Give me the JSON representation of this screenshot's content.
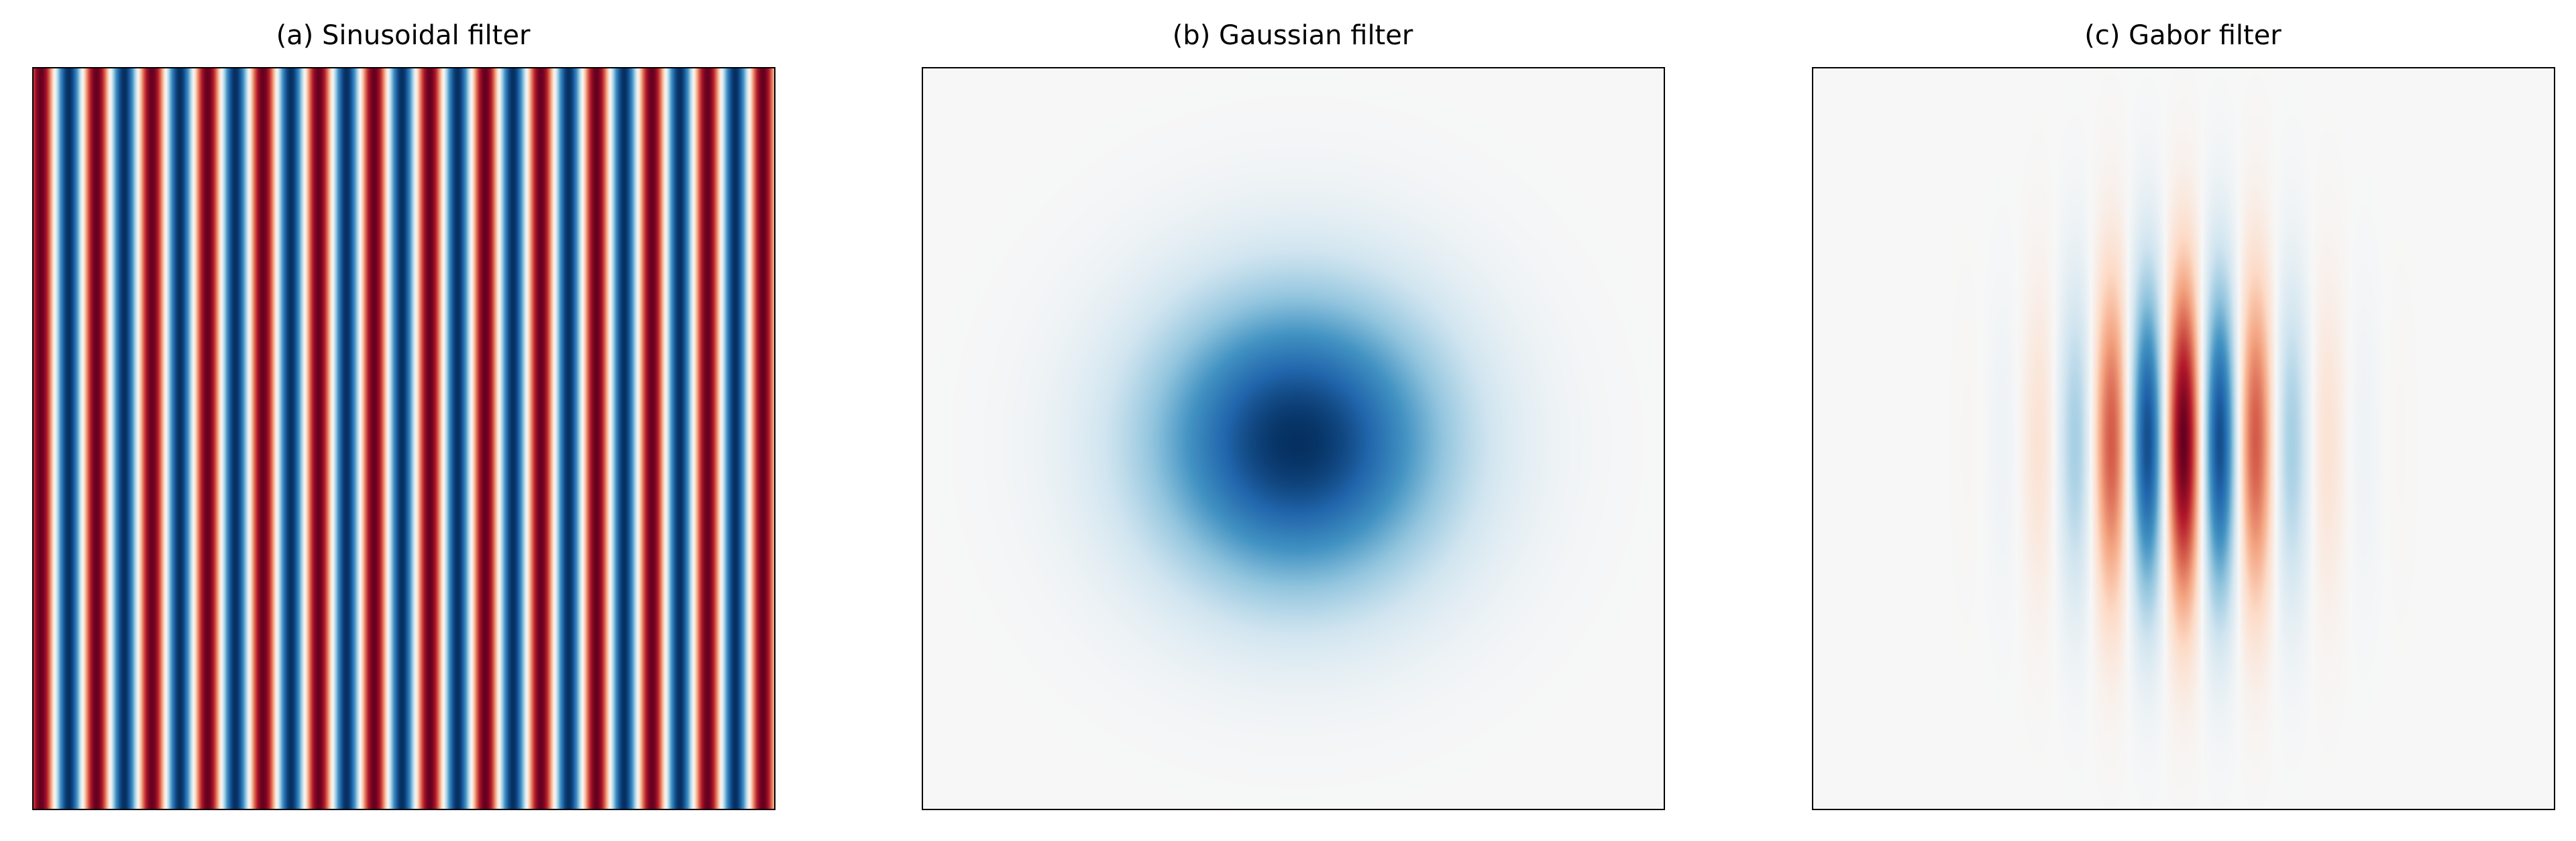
{
  "chart_data": [
    {
      "type": "heatmap",
      "title": "(a) Sinusoidal filter",
      "colormap": "RdBu_r",
      "value_range": [
        -1,
        1
      ],
      "extent": [
        -1,
        1
      ],
      "function": "sinusoid",
      "orientation": "vertical stripes",
      "wavelength": 0.15,
      "peak_x": -0.98,
      "axes_ticks": "none"
    },
    {
      "type": "heatmap",
      "title": "(b) Gaussian filter",
      "colormap": "RdBu_r",
      "value_range": [
        -1,
        1
      ],
      "extent": [
        -1,
        1
      ],
      "function": "gaussian",
      "center": [
        0.01,
        -0.01
      ],
      "sigma": 0.29,
      "amplitude": -1,
      "axes_ticks": "none"
    },
    {
      "type": "heatmap",
      "title": "(c) Gabor filter",
      "colormap": "RdBu_r",
      "value_range": [
        -1,
        1
      ],
      "extent": [
        -1,
        1
      ],
      "function": "gabor",
      "center": [
        0.0,
        -0.01
      ],
      "sigma_x": 0.2,
      "sigma_y": 0.31,
      "wavelength": 0.2,
      "amplitude": 1,
      "axes_ticks": "none"
    }
  ],
  "colormap_stops": [
    "#053061",
    "#2166ac",
    "#4393c3",
    "#92c5de",
    "#d1e5f0",
    "#f7f7f7",
    "#fddbc7",
    "#f4a582",
    "#d6604d",
    "#b2182b",
    "#67001f"
  ]
}
